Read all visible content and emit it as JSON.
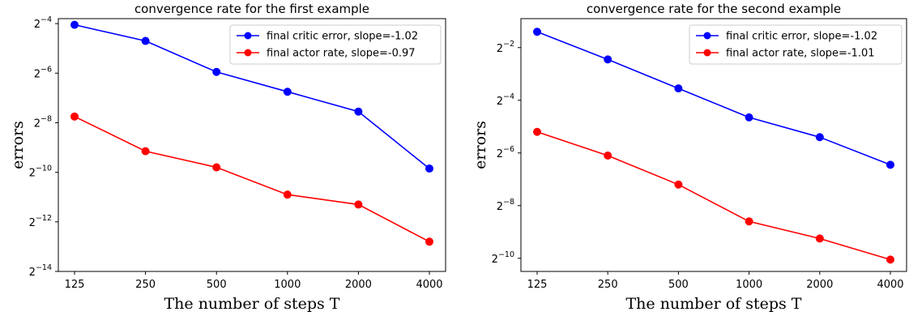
{
  "chart_data": [
    {
      "type": "line",
      "title": "convergence rate for the first example",
      "xlabel": "The number of steps T",
      "ylabel": "errors",
      "x": [
        125,
        250,
        500,
        1000,
        2000,
        4000
      ],
      "x_scale": "log2",
      "y_scale": "log2",
      "ylim": [
        -14,
        -3.8
      ],
      "yticks": [
        {
          "base": "2",
          "exp": "−4",
          "value": -4
        },
        {
          "base": "2",
          "exp": "−6",
          "value": -6
        },
        {
          "base": "2",
          "exp": "−8",
          "value": -8
        },
        {
          "base": "2",
          "exp": "−10",
          "value": -10
        },
        {
          "base": "2",
          "exp": "−12",
          "value": -12
        },
        {
          "base": "2",
          "exp": "−14",
          "value": -14
        }
      ],
      "xtick_labels": [
        "125",
        "250",
        "500",
        "1000",
        "2000",
        "4000"
      ],
      "legend_position": "top-right",
      "grid": false,
      "series": [
        {
          "name": "final critic error, slope=-1.02",
          "color": "#0000ff",
          "log2_values": [
            -4.05,
            -4.7,
            -5.95,
            -6.75,
            -7.55,
            -9.85
          ]
        },
        {
          "name": "final actor rate, slope=-0.97",
          "color": "#ff0000",
          "log2_values": [
            -7.75,
            -9.15,
            -9.8,
            -10.9,
            -11.3,
            -12.8
          ]
        }
      ]
    },
    {
      "type": "line",
      "title": "convergence rate for the second example",
      "xlabel": "The number of steps T",
      "ylabel": "errors",
      "x": [
        125,
        250,
        500,
        1000,
        2000,
        4000
      ],
      "x_scale": "log2",
      "y_scale": "log2",
      "ylim": [
        -10.5,
        -0.9
      ],
      "yticks": [
        {
          "base": "2",
          "exp": "−2",
          "value": -2
        },
        {
          "base": "2",
          "exp": "−4",
          "value": -4
        },
        {
          "base": "2",
          "exp": "−6",
          "value": -6
        },
        {
          "base": "2",
          "exp": "−8",
          "value": -8
        },
        {
          "base": "2",
          "exp": "−10",
          "value": -10
        }
      ],
      "xtick_labels": [
        "125",
        "250",
        "500",
        "1000",
        "2000",
        "4000"
      ],
      "legend_position": "top-right",
      "grid": false,
      "series": [
        {
          "name": "final critic error, slope=-1.02",
          "color": "#0000ff",
          "log2_values": [
            -1.4,
            -2.45,
            -3.55,
            -4.65,
            -5.4,
            -6.45
          ]
        },
        {
          "name": "final actor rate, slope=-1.01",
          "color": "#ff0000",
          "log2_values": [
            -5.2,
            -6.1,
            -7.2,
            -8.6,
            -9.25,
            -10.05
          ]
        }
      ]
    }
  ]
}
